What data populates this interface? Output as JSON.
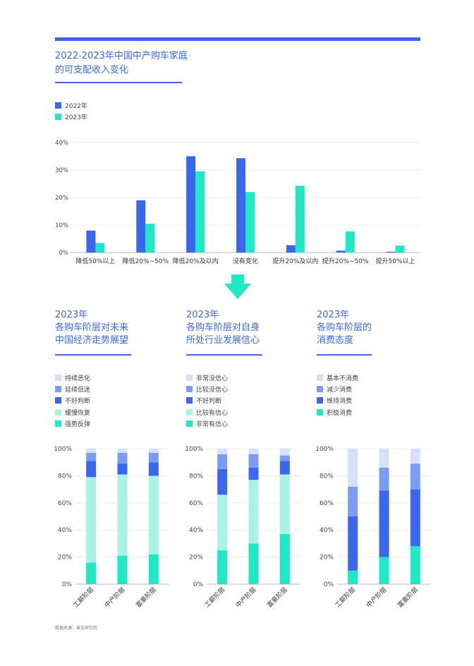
{
  "page": {
    "title": "2022-2023年中国中产购车家庭\n的可支配收入变化",
    "source": "数据来源：易车研究院"
  },
  "colors": {
    "accent": "#3a66f0",
    "y2022": "#3a66f0",
    "y2023": "#1de9c4",
    "arrow": "#1de9c4",
    "stack": [
      "#1de9c4",
      "#a8f3e6",
      "#3a66f0",
      "#7b9cf2",
      "#d6e0fa"
    ]
  },
  "chart_data": [
    {
      "type": "bar",
      "title": "2022-2023年中国中产购车家庭的可支配收入变化",
      "categories": [
        "降低50%以上",
        "降低20%~50%",
        "降低20%及以内",
        "没有变化",
        "提升20%及以内",
        "提升20%~50%",
        "提升50%以上"
      ],
      "series": [
        {
          "name": "2022年",
          "values": [
            8,
            19,
            35,
            34.3,
            2.7,
            0.7,
            0.3
          ]
        },
        {
          "name": "2023年",
          "values": [
            3.5,
            10.5,
            29.5,
            22,
            24.3,
            7.7,
            2.5
          ]
        }
      ],
      "yticks": [
        "0%",
        "10%",
        "20%",
        "30%",
        "40%"
      ],
      "ylim": [
        0,
        40
      ],
      "grid": true,
      "legend": "top-left"
    },
    {
      "type": "bar",
      "stacked": true,
      "title": "2023年\n各购车阶层对未来\n中国经济走势展望",
      "categories": [
        "工薪阶层",
        "中产阶层",
        "富豪阶层"
      ],
      "series": [
        {
          "name": "强势反弹",
          "values": [
            16,
            21,
            22
          ]
        },
        {
          "name": "缓慢恢复",
          "values": [
            63,
            60,
            58
          ]
        },
        {
          "name": "不好判断",
          "values": [
            12,
            8,
            10
          ]
        },
        {
          "name": "延续低迷",
          "values": [
            6,
            8,
            7
          ]
        },
        {
          "name": "持续恶化",
          "values": [
            3,
            3,
            3
          ]
        }
      ],
      "legend_order": [
        "持续恶化",
        "延续低迷",
        "不好判断",
        "缓慢恢复",
        "强势反弹"
      ],
      "yticks": [
        "0%",
        "20%",
        "40%",
        "60%",
        "80%",
        "100%"
      ],
      "ylim": [
        0,
        100
      ]
    },
    {
      "type": "bar",
      "stacked": true,
      "title": "2023年\n各购车阶层对自身\n所处行业发展信心",
      "categories": [
        "工薪阶层",
        "中产阶层",
        "富豪阶层"
      ],
      "series": [
        {
          "name": "非常有信心",
          "values": [
            25,
            30,
            37
          ]
        },
        {
          "name": "比较有信心",
          "values": [
            41,
            47,
            44
          ]
        },
        {
          "name": "不好判断",
          "values": [
            19,
            9,
            10
          ]
        },
        {
          "name": "比较没信心",
          "values": [
            11,
            10,
            4
          ]
        },
        {
          "name": "非常没信心",
          "values": [
            4,
            4,
            5
          ]
        }
      ],
      "legend_order": [
        "非常没信心",
        "比较没信心",
        "不好判断",
        "比较有信心",
        "非常有信心"
      ],
      "yticks": [
        "0%",
        "20%",
        "40%",
        "60%",
        "80%",
        "100%"
      ],
      "ylim": [
        0,
        100
      ]
    },
    {
      "type": "bar",
      "stacked": true,
      "title": "2023年\n各购车阶层的\n消费态度",
      "categories": [
        "工薪阶层",
        "中产阶层",
        "富豪阶层"
      ],
      "series": [
        {
          "name": "积极消费",
          "values": [
            10,
            20,
            28
          ]
        },
        {
          "name": "维持消费",
          "values": [
            40,
            49,
            42
          ]
        },
        {
          "name": "减少消费",
          "values": [
            22,
            17,
            19
          ]
        },
        {
          "name": "基本不消费",
          "values": [
            28,
            14,
            11
          ]
        }
      ],
      "legend_order": [
        "基本不消费",
        "减少消费",
        "维持消费",
        "积极消费"
      ],
      "yticks": [
        "0%",
        "20%",
        "40%",
        "60%",
        "80%",
        "100%"
      ],
      "ylim": [
        0,
        100
      ]
    }
  ]
}
